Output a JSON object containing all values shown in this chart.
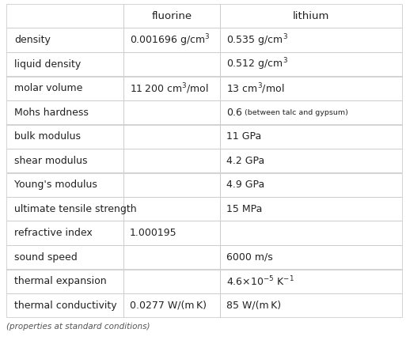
{
  "headers": [
    "",
    "fluorine",
    "lithium"
  ],
  "rows": [
    [
      "density",
      "0.001696 g/cm$^3$",
      "0.535 g/cm$^3$"
    ],
    [
      "liquid density",
      "",
      "0.512 g/cm$^3$"
    ],
    [
      "molar volume",
      "11 200 cm$^3$/mol",
      "13 cm$^3$/mol"
    ],
    [
      "Mohs hardness",
      "",
      "MOHS_SPECIAL"
    ],
    [
      "bulk modulus",
      "",
      "11 GPa"
    ],
    [
      "shear modulus",
      "",
      "4.2 GPa"
    ],
    [
      "Young's modulus",
      "",
      "4.9 GPa"
    ],
    [
      "ultimate tensile strength",
      "",
      "15 MPa"
    ],
    [
      "refractive index",
      "1.000195",
      ""
    ],
    [
      "sound speed",
      "",
      "6000 m/s"
    ],
    [
      "thermal expansion",
      "",
      "4.6×10$^{-5}$ K$^{-1}$"
    ],
    [
      "thermal conductivity",
      "0.0277 W/(m K)",
      "85 W/(m K)"
    ]
  ],
  "footer": "(properties at standard conditions)",
  "border_color": "#cccccc",
  "text_color": "#222222",
  "header_fontsize": 9.5,
  "cell_fontsize": 9.0,
  "mohs_main_fontsize": 9.0,
  "mohs_note_fontsize": 6.8,
  "footer_fontsize": 7.5
}
